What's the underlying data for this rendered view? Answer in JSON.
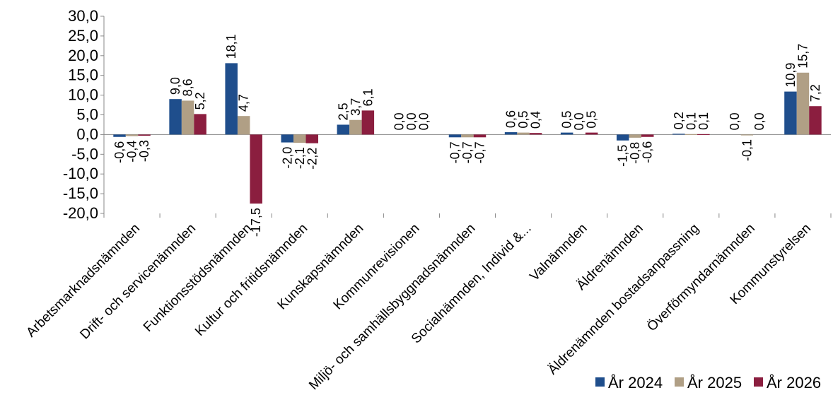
{
  "chart_data": {
    "type": "bar",
    "title": "",
    "xlabel": "",
    "ylabel": "",
    "ylim": [
      -20,
      30
    ],
    "yticks": [
      "30,0",
      "25,0",
      "20,0",
      "15,0",
      "10,0",
      "5,0",
      "0,0",
      "-5,0",
      "-10,0",
      "-15,0",
      "-20,0"
    ],
    "ytick_values": [
      30,
      25,
      20,
      15,
      10,
      5,
      0,
      -5,
      -10,
      -15,
      -20
    ],
    "grid": false,
    "legend_position": "bottom-right",
    "categories": [
      "Arbetsmarknadsnämnden",
      "Drift- och servicenämnden",
      "Funktionsstödsnämnden",
      "Kultur och fritidsnämnden",
      "Kunskapsnämnden",
      "Kommunrevisionen",
      "Miljö- och samhällsbyggnadsnämnden",
      "Socialnämnden, Individ &...",
      "Valnämnden",
      "Äldrenämnden",
      "Äldrenämnden bostadsanpassning",
      "Överförmyndarnämnden",
      "Kommunstyrelsen"
    ],
    "series": [
      {
        "name": "År 2024",
        "color": "#1f4e8c",
        "values": [
          -0.6,
          9.0,
          18.1,
          -2.0,
          2.5,
          0.0,
          -0.7,
          0.6,
          0.5,
          -1.5,
          0.2,
          0.0,
          10.9
        ],
        "labels": [
          "-0,6",
          "9,0",
          "18,1",
          "-2,0",
          "2,5",
          "0,0",
          "-0,7",
          "0,6",
          "0,5",
          "-1,5",
          "0,2",
          "0,0",
          "10,9"
        ]
      },
      {
        "name": "År 2025",
        "color": "#b09f85",
        "values": [
          -0.4,
          8.6,
          4.7,
          -2.1,
          3.7,
          0.0,
          -0.7,
          0.5,
          0.0,
          -0.8,
          0.1,
          -0.1,
          15.7
        ],
        "labels": [
          "-0,4",
          "8,6",
          "4,7",
          "-2,1",
          "3,7",
          "0,0",
          "-0,7",
          "0,5",
          "0,0",
          "-0,8",
          "0,1",
          "-0,1",
          "15,7"
        ]
      },
      {
        "name": "År 2026",
        "color": "#8b1e3f",
        "values": [
          -0.3,
          5.2,
          -17.5,
          -2.2,
          6.1,
          0.0,
          -0.7,
          0.4,
          0.5,
          -0.6,
          0.1,
          0.0,
          7.2
        ],
        "labels": [
          "-0,3",
          "5,2",
          "-17,5",
          "-2,2",
          "6,1",
          "0,0",
          "-0,7",
          "0,4",
          "0,5",
          "-0,6",
          "0,1",
          "0,0",
          "7,2"
        ]
      }
    ]
  }
}
